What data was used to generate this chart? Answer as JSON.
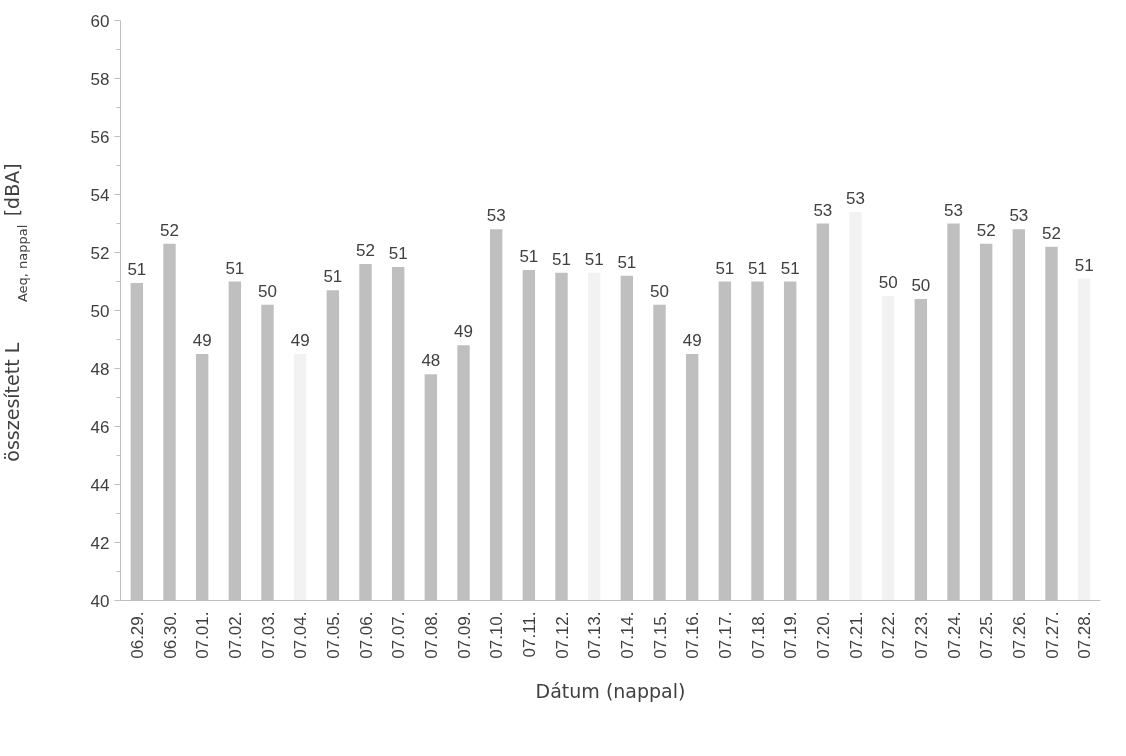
{
  "chart_data": {
    "type": "bar",
    "xlabel": "Dátum (nappal)",
    "ylabel": "összesített  L$_{Aeq, nappal}$[dBA]",
    "categories": [
      "06.29.",
      "06.30.",
      "07.01.",
      "07.02.",
      "07.03.",
      "07.04.",
      "07.05.",
      "07.06.",
      "07.07.",
      "07.08.",
      "07.09.",
      "07.10.",
      "07.11.",
      "07.12.",
      "07.13.",
      "07.14.",
      "07.15.",
      "07.16.",
      "07.17.",
      "07.18.",
      "07.19.",
      "07.20.",
      "07.21.",
      "07.22.",
      "07.23.",
      "07.24.",
      "07.25.",
      "07.26.",
      "07.27.",
      "07.28."
    ],
    "values": [
      50.95,
      52.3,
      48.5,
      51.0,
      50.2,
      48.5,
      50.7,
      51.6,
      51.5,
      47.8,
      48.8,
      52.8,
      51.4,
      51.3,
      51.3,
      51.2,
      50.2,
      48.5,
      51.0,
      51.0,
      51.0,
      53.0,
      53.4,
      50.5,
      50.4,
      53.0,
      52.3,
      52.8,
      52.2,
      51.1
    ],
    "colors": [
      "#bfbfbf",
      "#bfbfbf",
      "#bfbfbf",
      "#bfbfbf",
      "#bfbfbf",
      "#f2f2f2",
      "#bfbfbf",
      "#bfbfbf",
      "#bfbfbf",
      "#bfbfbf",
      "#bfbfbf",
      "#bfbfbf",
      "#bfbfbf",
      "#bfbfbf",
      "#f2f2f2",
      "#bfbfbf",
      "#bfbfbf",
      "#bfbfbf",
      "#bfbfbf",
      "#bfbfbf",
      "#bfbfbf",
      "#bfbfbf",
      "#f2f2f2",
      "#f2f2f2",
      "#bfbfbf",
      "#bfbfbf",
      "#bfbfbf",
      "#bfbfbf",
      "#bfbfbf",
      "#f2f2f2"
    ],
    "value_labels": [
      "51",
      "52",
      "49",
      "51",
      "50",
      "49",
      "51",
      "52",
      "51",
      "48",
      "49",
      "53",
      "51",
      "51",
      "51",
      "51",
      "50",
      "49",
      "51",
      "51",
      "51",
      "53",
      "53",
      "50",
      "50",
      "53",
      "52",
      "53",
      "52",
      "51"
    ],
    "ylim": [
      40,
      60
    ],
    "yticks": [
      40,
      42,
      44,
      46,
      48,
      50,
      52,
      54,
      56,
      58,
      60
    ],
    "grid": false
  }
}
